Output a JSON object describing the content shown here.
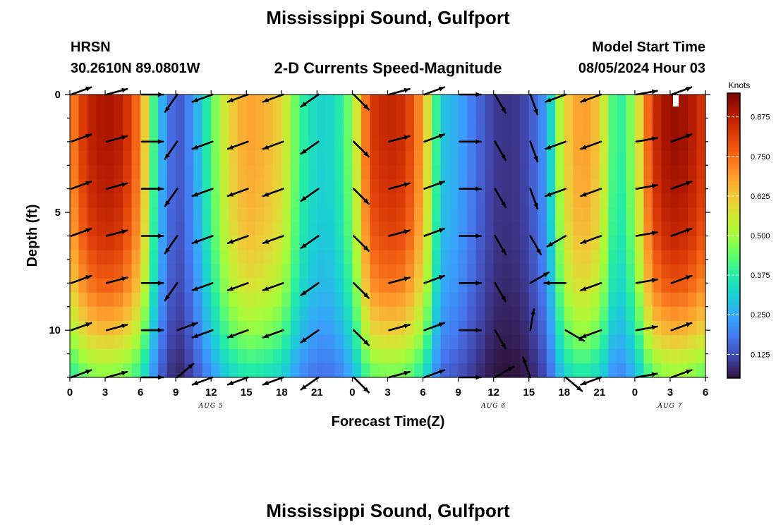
{
  "header": {
    "title": "Mississippi Sound, Gulfport",
    "station": "HRSN",
    "coordinates": "30.2610N  89.0801W",
    "subtitle": "2-D Currents Speed-Magnitude",
    "model_start_label": "Model Start Time",
    "model_start_time": "08/05/2024 Hour 03"
  },
  "footer": {
    "title": "Mississippi Sound, Gulfport"
  },
  "chart_data": {
    "type": "heatmap",
    "title": "2-D Currents Speed-Magnitude",
    "xlabel": "Forecast Time(Z)",
    "ylabel": "Depth (ft)",
    "x_range_hours": [
      0,
      54
    ],
    "y_range_ft": [
      0,
      12
    ],
    "y_inverted": true,
    "x_tick_labels": [
      "0",
      "3",
      "6",
      "9",
      "12",
      "15",
      "18",
      "21",
      "0",
      "3",
      "6",
      "9",
      "12",
      "15",
      "18",
      "21",
      "0",
      "3",
      "6"
    ],
    "y_tick_labels": [
      "0",
      "5",
      "10"
    ],
    "y_ticks": [
      0,
      5,
      10
    ],
    "date_labels": [
      {
        "label": "AUG 5",
        "hour": 12
      },
      {
        "label": "AUG 6",
        "hour": 36
      },
      {
        "label": "AUG 7",
        "hour": 51
      }
    ],
    "colorbar": {
      "label": "Knots",
      "min": 0.05,
      "max": 0.95,
      "ticks": [
        0.125,
        0.25,
        0.375,
        0.5,
        0.625,
        0.75,
        0.875
      ],
      "tick_labels": [
        "0.125",
        "0.250",
        "0.375",
        "0.500",
        "0.625",
        "0.750",
        "0.875"
      ]
    },
    "time_speed_profile": {
      "hours": [
        0,
        1.5,
        3,
        4.5,
        6,
        7.5,
        9,
        10.5,
        12,
        13.5,
        15,
        16.5,
        18,
        19.5,
        21,
        22.5,
        24,
        25.5,
        27,
        28.5,
        30,
        31.5,
        33,
        34.5,
        36,
        37.5,
        39,
        40.5,
        42,
        43.5,
        45,
        46.5,
        48,
        49.5,
        51,
        52.5,
        54
      ],
      "speed_knots": [
        0.7,
        0.86,
        0.9,
        0.87,
        0.72,
        0.3,
        0.12,
        0.22,
        0.42,
        0.6,
        0.68,
        0.66,
        0.6,
        0.4,
        0.32,
        0.33,
        0.48,
        0.82,
        0.86,
        0.84,
        0.68,
        0.3,
        0.25,
        0.17,
        0.1,
        0.09,
        0.12,
        0.24,
        0.6,
        0.7,
        0.62,
        0.35,
        0.5,
        0.84,
        0.92,
        0.9,
        0.82
      ]
    },
    "depth_factor": {
      "depth_ft": [
        0,
        2,
        4,
        6,
        8,
        10,
        11,
        12
      ],
      "factor": [
        1.0,
        1.0,
        0.98,
        0.94,
        0.86,
        0.72,
        0.62,
        0.52
      ]
    },
    "vectors": {
      "hours": [
        0,
        3,
        6,
        9,
        12,
        15,
        18,
        21,
        24,
        27,
        30,
        33,
        36,
        39,
        42,
        45,
        48,
        51
      ],
      "depths_ft": [
        0,
        2,
        4,
        6,
        8,
        10,
        12
      ],
      "direction_deg_by_time": [
        20,
        15,
        0,
        235,
        200,
        200,
        200,
        215,
        315,
        15,
        20,
        0,
        300,
        290,
        200,
        200,
        10,
        20
      ],
      "direction_deg_overrides": [
        {
          "hour": 39,
          "depth_ft": 6,
          "deg": 300
        },
        {
          "hour": 42,
          "depth_ft": 6,
          "deg": 210
        },
        {
          "hour": 39,
          "depth_ft": 8,
          "deg": 30
        },
        {
          "hour": 42,
          "depth_ft": 8,
          "deg": 180
        },
        {
          "hour": 39,
          "depth_ft": 10,
          "deg": 80
        },
        {
          "hour": 42,
          "depth_ft": 10,
          "deg": 330
        },
        {
          "hour": 36,
          "depth_ft": 12,
          "deg": 30
        },
        {
          "hour": 39,
          "depth_ft": 12,
          "deg": 110
        },
        {
          "hour": 42,
          "depth_ft": 12,
          "deg": 320
        },
        {
          "hour": 9,
          "depth_ft": 10,
          "deg": 20
        },
        {
          "hour": 9,
          "depth_ft": 12,
          "deg": 40
        }
      ]
    },
    "grid": false,
    "colormap": "turbo"
  }
}
